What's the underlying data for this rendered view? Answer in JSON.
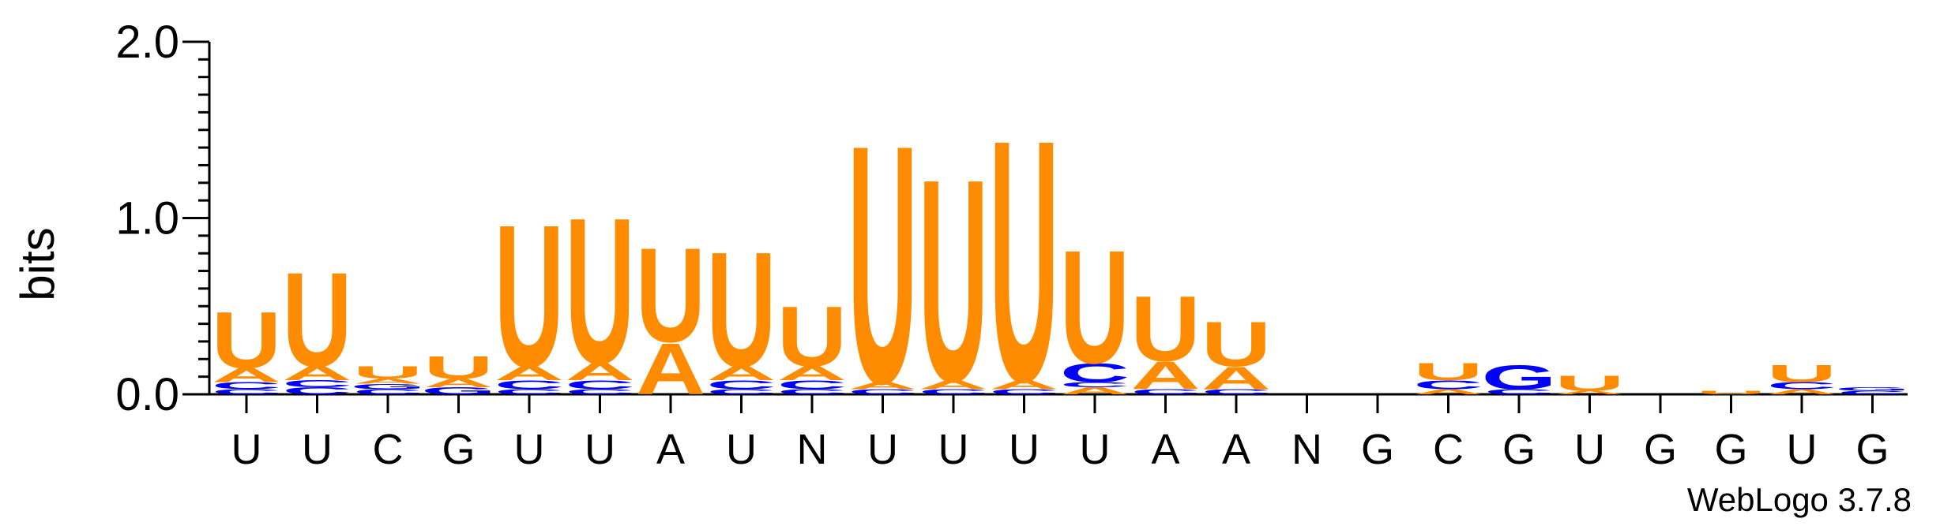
{
  "chart_data": {
    "type": "sequence-logo",
    "ylabel": "bits",
    "ylim": [
      0,
      2.0
    ],
    "yticks": [
      "0.0",
      "1.0",
      "2.0"
    ],
    "xlabels": [
      "U",
      "U",
      "C",
      "G",
      "U",
      "U",
      "A",
      "U",
      "N",
      "U",
      "U",
      "U",
      "U",
      "A",
      "A",
      "N",
      "G",
      "C",
      "G",
      "U",
      "G",
      "G",
      "U",
      "G"
    ],
    "colors": {
      "U": "#ff8c00",
      "A": "#ff8c00",
      "C": "#0000ff",
      "G": "#0000ff"
    },
    "stacks": [
      [
        {
          "l": "C",
          "h": 0.03
        },
        {
          "l": "C",
          "h": 0.04
        },
        {
          "l": "A",
          "h": 0.08
        },
        {
          "l": "U",
          "h": 0.33
        }
      ],
      [
        {
          "l": "C",
          "h": 0.04
        },
        {
          "l": "C",
          "h": 0.04
        },
        {
          "l": "A",
          "h": 0.08
        },
        {
          "l": "U",
          "h": 0.55
        }
      ],
      [
        {
          "l": "C",
          "h": 0.03
        },
        {
          "l": "G",
          "h": 0.03
        },
        {
          "l": "A",
          "h": 0.03
        },
        {
          "l": "U",
          "h": 0.07
        }
      ],
      [
        {
          "l": "G",
          "h": 0.04
        },
        {
          "l": "A",
          "h": 0.05
        },
        {
          "l": "U",
          "h": 0.13
        }
      ],
      [
        {
          "l": "C",
          "h": 0.03
        },
        {
          "l": "C",
          "h": 0.05
        },
        {
          "l": "A",
          "h": 0.08
        },
        {
          "l": "U",
          "h": 0.83
        }
      ],
      [
        {
          "l": "C",
          "h": 0.03
        },
        {
          "l": "C",
          "h": 0.05
        },
        {
          "l": "A",
          "h": 0.1
        },
        {
          "l": "U",
          "h": 0.85
        }
      ],
      [
        {
          "l": "A",
          "h": 0.3
        },
        {
          "l": "U",
          "h": 0.55
        }
      ],
      [
        {
          "l": "C",
          "h": 0.03
        },
        {
          "l": "C",
          "h": 0.05
        },
        {
          "l": "A",
          "h": 0.08
        },
        {
          "l": "U",
          "h": 0.67
        }
      ],
      [
        {
          "l": "C",
          "h": 0.03
        },
        {
          "l": "C",
          "h": 0.05
        },
        {
          "l": "A",
          "h": 0.08
        },
        {
          "l": "U",
          "h": 0.35
        }
      ],
      [
        {
          "l": "C",
          "h": 0.03
        },
        {
          "l": "A",
          "h": 0.04
        },
        {
          "l": "U",
          "h": 1.39
        }
      ],
      [
        {
          "l": "C",
          "h": 0.03
        },
        {
          "l": "A",
          "h": 0.05
        },
        {
          "l": "U",
          "h": 1.18
        }
      ],
      [
        {
          "l": "C",
          "h": 0.03
        },
        {
          "l": "A",
          "h": 0.05
        },
        {
          "l": "U",
          "h": 1.41
        }
      ],
      [
        {
          "l": "A",
          "h": 0.04
        },
        {
          "l": "C",
          "h": 0.03
        },
        {
          "l": "C",
          "h": 0.11
        },
        {
          "l": "U",
          "h": 0.66
        }
      ],
      [
        {
          "l": "C",
          "h": 0.03
        },
        {
          "l": "A",
          "h": 0.16
        },
        {
          "l": "U",
          "h": 0.38
        }
      ],
      [
        {
          "l": "C",
          "h": 0.03
        },
        {
          "l": "A",
          "h": 0.13
        },
        {
          "l": "U",
          "h": 0.26
        }
      ],
      [],
      [],
      [
        {
          "l": "A",
          "h": 0.03
        },
        {
          "l": "C",
          "h": 0.05
        },
        {
          "l": "U",
          "h": 0.1
        }
      ],
      [
        {
          "l": "C",
          "h": 0.03
        },
        {
          "l": "G",
          "h": 0.14
        }
      ],
      [
        {
          "l": "A",
          "h": 0.02
        },
        {
          "l": "U",
          "h": 0.09
        }
      ],
      [],
      [
        {
          "l": "U",
          "h": 0.02
        }
      ],
      [
        {
          "l": "A",
          "h": 0.03
        },
        {
          "l": "C",
          "h": 0.04
        },
        {
          "l": "U",
          "h": 0.1
        }
      ],
      [
        {
          "l": "C",
          "h": 0.02
        },
        {
          "l": "G",
          "h": 0.02
        }
      ]
    ]
  },
  "footer": {
    "version_label": "WebLogo 3.7.8"
  }
}
